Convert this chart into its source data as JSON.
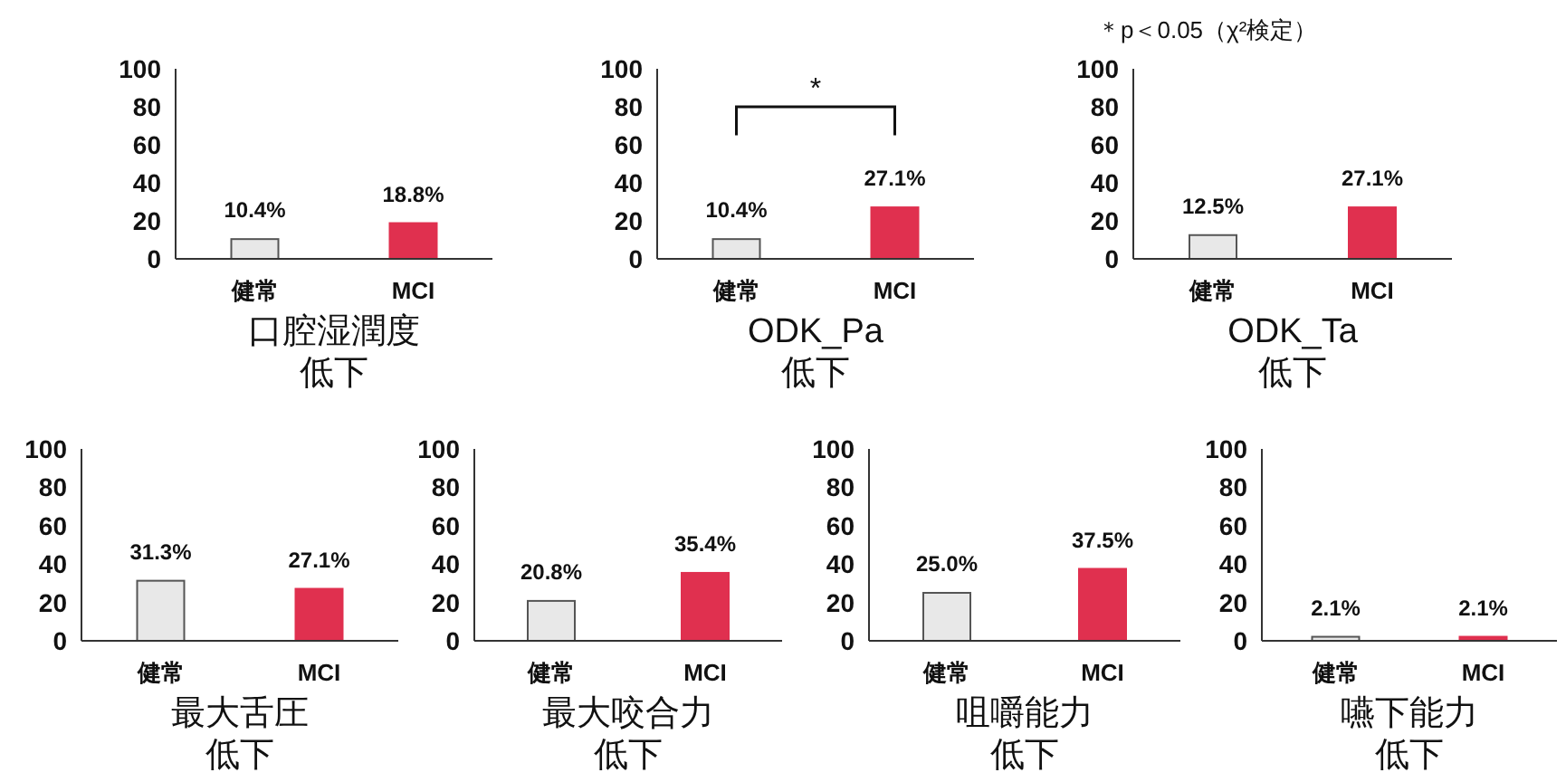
{
  "chart_data": [
    {
      "type": "bar",
      "title": "口腔湿潤度",
      "subtitle": "低下",
      "categories": [
        "健常",
        "MCI"
      ],
      "values": [
        10.4,
        18.8
      ],
      "colors": [
        "#e8e8e8",
        "#e0304f"
      ],
      "value_labels": [
        "10.4%",
        "18.8%"
      ],
      "ylim": [
        0,
        100
      ],
      "yticks": [
        0,
        20,
        40,
        60,
        80,
        100
      ]
    },
    {
      "type": "bar",
      "title": "ODK_Pa",
      "subtitle": "低下",
      "categories": [
        "健常",
        "MCI"
      ],
      "values": [
        10.4,
        27.1
      ],
      "colors": [
        "#e8e8e8",
        "#e0304f"
      ],
      "value_labels": [
        "10.4%",
        "27.1%"
      ],
      "ylim": [
        0,
        100
      ],
      "yticks": [
        0,
        20,
        40,
        60,
        80,
        100
      ],
      "annotations": [
        "*"
      ]
    },
    {
      "type": "bar",
      "title": "ODK_Ta",
      "subtitle": "低下",
      "categories": [
        "健常",
        "MCI"
      ],
      "values": [
        12.5,
        27.1
      ],
      "colors": [
        "#e8e8e8",
        "#e0304f"
      ],
      "value_labels": [
        "12.5%",
        "27.1%"
      ],
      "ylim": [
        0,
        100
      ],
      "yticks": [
        0,
        20,
        40,
        60,
        80,
        100
      ],
      "annotations": [
        "＊p＜0.05（χ²検定）"
      ]
    },
    {
      "type": "bar",
      "title": "最大舌圧",
      "subtitle": "低下",
      "categories": [
        "健常",
        "MCI"
      ],
      "values": [
        31.3,
        27.1
      ],
      "colors": [
        "#e8e8e8",
        "#e0304f"
      ],
      "value_labels": [
        "31.3%",
        "27.1%"
      ],
      "ylim": [
        0,
        100
      ],
      "yticks": [
        0,
        20,
        40,
        60,
        80,
        100
      ]
    },
    {
      "type": "bar",
      "title": "最大咬合力",
      "subtitle": "低下",
      "categories": [
        "健常",
        "MCI"
      ],
      "values": [
        20.8,
        35.4
      ],
      "colors": [
        "#e8e8e8",
        "#e0304f"
      ],
      "value_labels": [
        "20.8%",
        "35.4%"
      ],
      "ylim": [
        0,
        100
      ],
      "yticks": [
        0,
        20,
        40,
        60,
        80,
        100
      ]
    },
    {
      "type": "bar",
      "title": "咀嚼能力",
      "subtitle": "低下",
      "categories": [
        "健常",
        "MCI"
      ],
      "values": [
        25.0,
        37.5
      ],
      "colors": [
        "#e8e8e8",
        "#e0304f"
      ],
      "value_labels": [
        "25.0%",
        "37.5%"
      ],
      "ylim": [
        0,
        100
      ],
      "yticks": [
        0,
        20,
        40,
        60,
        80,
        100
      ]
    },
    {
      "type": "bar",
      "title": "嚥下能力",
      "subtitle": "低下",
      "categories": [
        "健常",
        "MCI"
      ],
      "values": [
        2.1,
        2.1
      ],
      "colors": [
        "#e8e8e8",
        "#e0304f"
      ],
      "value_labels": [
        "2.1%",
        "2.1%"
      ],
      "ylim": [
        0,
        100
      ],
      "yticks": [
        0,
        20,
        40,
        60,
        80,
        100
      ]
    }
  ]
}
